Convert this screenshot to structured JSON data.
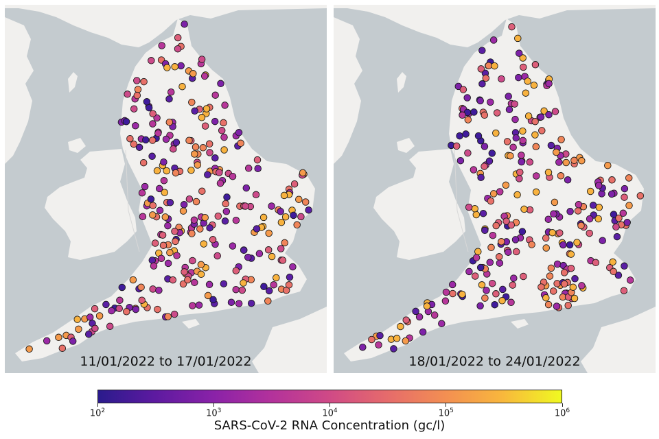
{
  "panels": [
    {
      "period": "11/01/2022 to 17/01/2022"
    },
    {
      "period": "18/01/2022 to 24/01/2022"
    }
  ],
  "colorbar": {
    "label": "SARS-CoV-2 RNA Concentration (gc/l)",
    "scale": "log",
    "range": [
      100,
      1000000
    ],
    "ticks": [
      {
        "base": "10",
        "exp": "2"
      },
      {
        "base": "10",
        "exp": "3"
      },
      {
        "base": "10",
        "exp": "4"
      },
      {
        "base": "10",
        "exp": "5"
      },
      {
        "base": "10",
        "exp": "6"
      }
    ],
    "colormap": "plasma"
  },
  "colors": {
    "sea": "#c4cbcf",
    "land": "#f1f0ee",
    "marker_outline": "#1a1a1a"
  }
}
